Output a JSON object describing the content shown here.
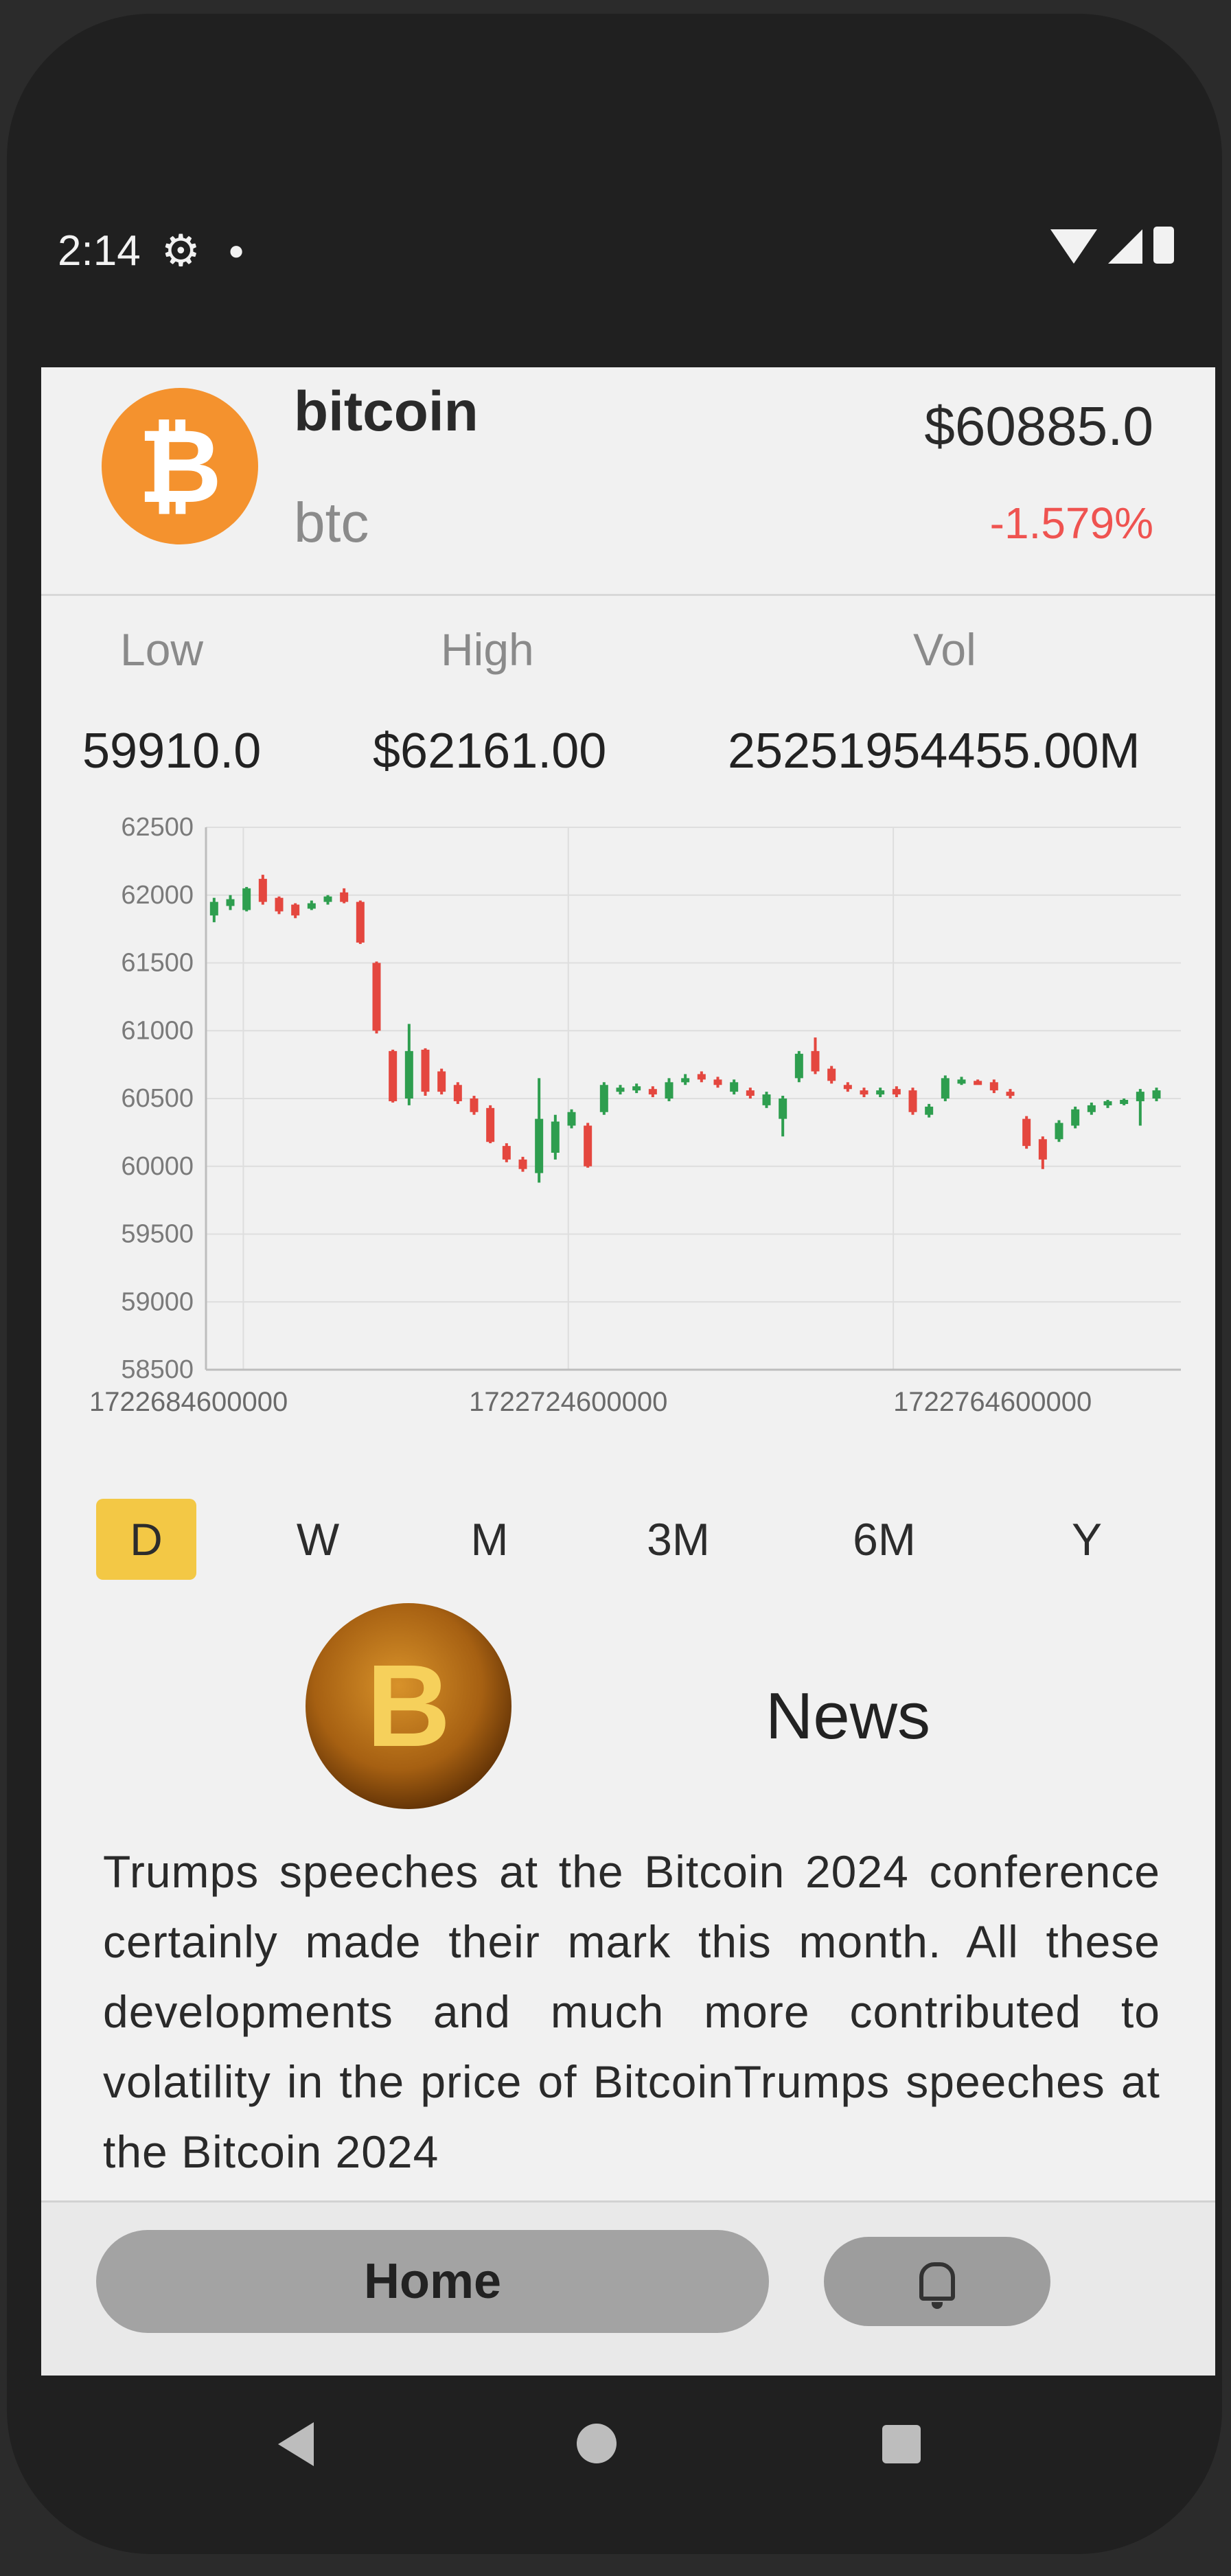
{
  "status_bar": {
    "time": "2:14",
    "icons": [
      "settings-icon",
      "notification-dot-icon",
      "wifi-icon",
      "signal-icon",
      "battery-icon"
    ]
  },
  "coin": {
    "name": "bitcoin",
    "symbol": "btc",
    "price": "$60885.0",
    "change": "-1.579%",
    "logo_glyph": "₿",
    "colors": {
      "logo": "#f4922e",
      "negative": "#ef5350",
      "positive": "#26a69a"
    }
  },
  "stats": {
    "low_label": "Low",
    "low_value": "59910.0",
    "high_label": "High",
    "high_value": "$62161.00",
    "vol_label": "Vol",
    "vol_value": "25251954455.00M"
  },
  "chart_data": {
    "type": "candlestick",
    "y_ticks": [
      "62500",
      "62000",
      "61500",
      "61000",
      "60500",
      "60000",
      "59500",
      "59000",
      "58500"
    ],
    "ylim": [
      58500,
      62500
    ],
    "x_ticks": [
      "1722684600000",
      "1722724600000",
      "1722764600000"
    ],
    "xlim": [
      1722680000000,
      1722800000000
    ],
    "grid": true,
    "candles": [
      {
        "x": 1722681000000,
        "open": 61850,
        "close": 61950,
        "high": 61980,
        "low": 61800
      },
      {
        "x": 1722683000000,
        "open": 61920,
        "close": 61970,
        "high": 62000,
        "low": 61890
      },
      {
        "x": 1722685000000,
        "open": 61890,
        "close": 62050,
        "high": 62060,
        "low": 61880
      },
      {
        "x": 1722687000000,
        "open": 62120,
        "close": 61950,
        "high": 62150,
        "low": 61930
      },
      {
        "x": 1722689000000,
        "open": 61980,
        "close": 61880,
        "high": 61990,
        "low": 61860
      },
      {
        "x": 1722691000000,
        "open": 61930,
        "close": 61850,
        "high": 61940,
        "low": 61830
      },
      {
        "x": 1722693000000,
        "open": 61900,
        "close": 61940,
        "high": 61960,
        "low": 61890
      },
      {
        "x": 1722695000000,
        "open": 61950,
        "close": 61990,
        "high": 62000,
        "low": 61930
      },
      {
        "x": 1722697000000,
        "open": 62020,
        "close": 61950,
        "high": 62050,
        "low": 61940
      },
      {
        "x": 1722699000000,
        "open": 61950,
        "close": 61650,
        "high": 61960,
        "low": 61640
      },
      {
        "x": 1722701000000,
        "open": 61500,
        "close": 61000,
        "high": 61510,
        "low": 60980
      },
      {
        "x": 1722703000000,
        "open": 60850,
        "close": 60480,
        "high": 60860,
        "low": 60470
      },
      {
        "x": 1722705000000,
        "open": 60500,
        "close": 60850,
        "high": 61050,
        "low": 60450
      },
      {
        "x": 1722707000000,
        "open": 60860,
        "close": 60550,
        "high": 60870,
        "low": 60520
      },
      {
        "x": 1722709000000,
        "open": 60700,
        "close": 60550,
        "high": 60720,
        "low": 60530
      },
      {
        "x": 1722711000000,
        "open": 60600,
        "close": 60480,
        "high": 60620,
        "low": 60460
      },
      {
        "x": 1722713000000,
        "open": 60500,
        "close": 60400,
        "high": 60520,
        "low": 60380
      },
      {
        "x": 1722715000000,
        "open": 60430,
        "close": 60180,
        "high": 60450,
        "low": 60170
      },
      {
        "x": 1722717000000,
        "open": 60150,
        "close": 60050,
        "high": 60170,
        "low": 60030
      },
      {
        "x": 1722719000000,
        "open": 60050,
        "close": 59980,
        "high": 60070,
        "low": 59960
      },
      {
        "x": 1722721000000,
        "open": 59950,
        "close": 60350,
        "high": 60650,
        "low": 59880
      },
      {
        "x": 1722723000000,
        "open": 60100,
        "close": 60330,
        "high": 60380,
        "low": 60050
      },
      {
        "x": 1722725000000,
        "open": 60300,
        "close": 60400,
        "high": 60420,
        "low": 60280
      },
      {
        "x": 1722727000000,
        "open": 60300,
        "close": 60000,
        "high": 60320,
        "low": 59990
      },
      {
        "x": 1722729000000,
        "open": 60400,
        "close": 60600,
        "high": 60620,
        "low": 60380
      },
      {
        "x": 1722731000000,
        "open": 60550,
        "close": 60580,
        "high": 60600,
        "low": 60530
      },
      {
        "x": 1722733000000,
        "open": 60560,
        "close": 60590,
        "high": 60610,
        "low": 60540
      },
      {
        "x": 1722735000000,
        "open": 60570,
        "close": 60530,
        "high": 60590,
        "low": 60510
      },
      {
        "x": 1722737000000,
        "open": 60500,
        "close": 60620,
        "high": 60650,
        "low": 60480
      },
      {
        "x": 1722739000000,
        "open": 60620,
        "close": 60650,
        "high": 60680,
        "low": 60600
      },
      {
        "x": 1722741000000,
        "open": 60680,
        "close": 60640,
        "high": 60700,
        "low": 60620
      },
      {
        "x": 1722743000000,
        "open": 60640,
        "close": 60600,
        "high": 60660,
        "low": 60580
      },
      {
        "x": 1722745000000,
        "open": 60550,
        "close": 60620,
        "high": 60640,
        "low": 60530
      },
      {
        "x": 1722747000000,
        "open": 60560,
        "close": 60520,
        "high": 60580,
        "low": 60500
      },
      {
        "x": 1722749000000,
        "open": 60450,
        "close": 60530,
        "high": 60550,
        "low": 60430
      },
      {
        "x": 1722751000000,
        "open": 60350,
        "close": 60500,
        "high": 60520,
        "low": 60220
      },
      {
        "x": 1722753000000,
        "open": 60650,
        "close": 60830,
        "high": 60850,
        "low": 60620
      },
      {
        "x": 1722755000000,
        "open": 60850,
        "close": 60700,
        "high": 60950,
        "low": 60680
      },
      {
        "x": 1722757000000,
        "open": 60720,
        "close": 60630,
        "high": 60740,
        "low": 60610
      },
      {
        "x": 1722759000000,
        "open": 60600,
        "close": 60570,
        "high": 60620,
        "low": 60550
      },
      {
        "x": 1722761000000,
        "open": 60560,
        "close": 60530,
        "high": 60580,
        "low": 60510
      },
      {
        "x": 1722763000000,
        "open": 60530,
        "close": 60560,
        "high": 60580,
        "low": 60510
      },
      {
        "x": 1722765000000,
        "open": 60570,
        "close": 60530,
        "high": 60590,
        "low": 60510
      },
      {
        "x": 1722767000000,
        "open": 60560,
        "close": 60400,
        "high": 60580,
        "low": 60380
      },
      {
        "x": 1722769000000,
        "open": 60380,
        "close": 60440,
        "high": 60460,
        "low": 60360
      },
      {
        "x": 1722771000000,
        "open": 60500,
        "close": 60650,
        "high": 60670,
        "low": 60480
      },
      {
        "x": 1722773000000,
        "open": 60620,
        "close": 60640,
        "high": 60660,
        "low": 60600
      },
      {
        "x": 1722775000000,
        "open": 60630,
        "close": 60620,
        "high": 60640,
        "low": 60610
      },
      {
        "x": 1722777000000,
        "open": 60620,
        "close": 60560,
        "high": 60640,
        "low": 60540
      },
      {
        "x": 1722779000000,
        "open": 60550,
        "close": 60520,
        "high": 60570,
        "low": 60500
      },
      {
        "x": 1722781000000,
        "open": 60350,
        "close": 60150,
        "high": 60370,
        "low": 60130
      },
      {
        "x": 1722783000000,
        "open": 60200,
        "close": 60050,
        "high": 60220,
        "low": 59980
      },
      {
        "x": 1722785000000,
        "open": 60200,
        "close": 60320,
        "high": 60340,
        "low": 60180
      },
      {
        "x": 1722787000000,
        "open": 60300,
        "close": 60420,
        "high": 60440,
        "low": 60280
      },
      {
        "x": 1722789000000,
        "open": 60400,
        "close": 60450,
        "high": 60470,
        "low": 60380
      },
      {
        "x": 1722791000000,
        "open": 60450,
        "close": 60480,
        "high": 60490,
        "low": 60430
      },
      {
        "x": 1722793000000,
        "open": 60470,
        "close": 60490,
        "high": 60500,
        "low": 60450
      },
      {
        "x": 1722795000000,
        "open": 60480,
        "close": 60550,
        "high": 60570,
        "low": 60300
      },
      {
        "x": 1722797000000,
        "open": 60500,
        "close": 60560,
        "high": 60580,
        "low": 60480
      }
    ]
  },
  "periods": {
    "items": [
      "D",
      "W",
      "M",
      "3M",
      "6M",
      "Y"
    ],
    "active": "D"
  },
  "news": {
    "title": "News",
    "coin_glyph": "B",
    "text": "Trumps speeches at the Bitcoin 2024 conference certainly made their mark this month. All these developments and much more contributed to volatility in the price of BitcoinTrumps speeches at the Bitcoin 2024"
  },
  "bottom_nav": {
    "home_label": "Home",
    "bell_icon": "bell-icon"
  },
  "system_nav": [
    "back-icon",
    "home-circle-icon",
    "recents-icon"
  ]
}
